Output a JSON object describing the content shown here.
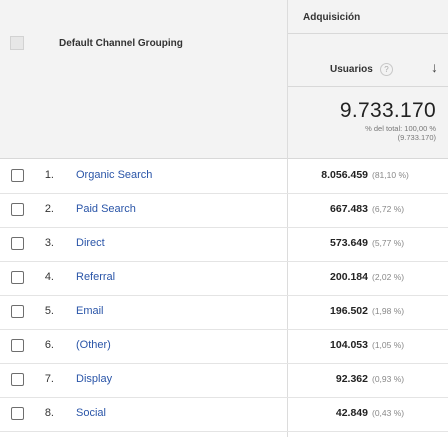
{
  "header": {
    "dimension_title": "Default Channel Grouping",
    "group_title": "Adquisición",
    "metric_label": "Usuarios",
    "help_glyph": "?",
    "sort_glyph": "↓"
  },
  "totals": {
    "value": "9.733.170",
    "pct_line": "% del total: 100,00 %",
    "abs_line": "(9.733.170)"
  },
  "rows": [
    {
      "num": "1.",
      "label": "Organic Search",
      "value": "8.056.459",
      "pct": "(81,10 %)"
    },
    {
      "num": "2.",
      "label": "Paid Search",
      "value": "667.483",
      "pct": "(6,72 %)"
    },
    {
      "num": "3.",
      "label": "Direct",
      "value": "573.649",
      "pct": "(5,77 %)"
    },
    {
      "num": "4.",
      "label": "Referral",
      "value": "200.184",
      "pct": "(2,02 %)"
    },
    {
      "num": "5.",
      "label": "Email",
      "value": "196.502",
      "pct": "(1,98 %)"
    },
    {
      "num": "6.",
      "label": "(Other)",
      "value": "104.053",
      "pct": "(1,05 %)"
    },
    {
      "num": "7.",
      "label": "Display",
      "value": "92.362",
      "pct": "(0,93 %)"
    },
    {
      "num": "8.",
      "label": "Social",
      "value": "42.849",
      "pct": "(0,43 %)"
    }
  ]
}
